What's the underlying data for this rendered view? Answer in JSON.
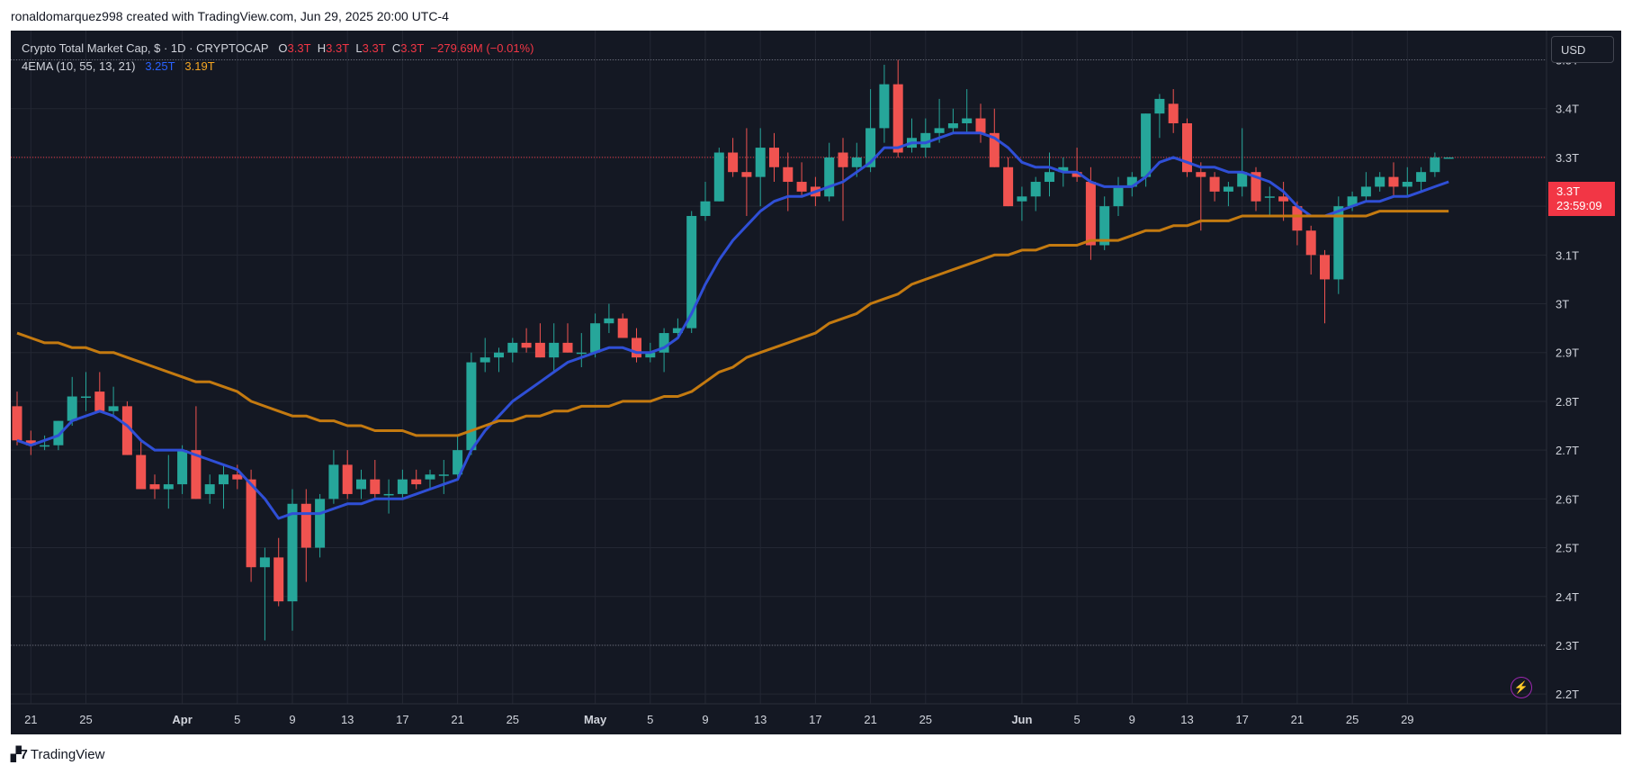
{
  "header": {
    "credit": "ronaldomarquez998 created with TradingView.com, Jun 29, 2025 20:00 UTC-4"
  },
  "legend": {
    "symbol": "Crypto Total Market Cap, $ · 1D · CRYPTOCAP",
    "o_label": "O",
    "o_value": "3.3T",
    "h_label": "H",
    "h_value": "3.3T",
    "l_label": "L",
    "l_value": "3.3T",
    "c_label": "C",
    "c_value": "3.3T",
    "change": "−279.69M (−0.01%)",
    "indicator": "4EMA (10, 55, 13, 21)",
    "ema_fast_value": "3.25T",
    "ema_slow_value": "3.19T"
  },
  "price_scale": {
    "currency": "USD",
    "last_price": "3.3T",
    "countdown": "23:59:09"
  },
  "footer": {
    "brand": "TradingView"
  },
  "colors": {
    "background": "#141823",
    "up": "#26a69a",
    "down": "#f05350",
    "ema_fast": "#2f4fd6",
    "ema_slow": "#c47a10",
    "grid": "#232733",
    "text": "#d1d4dc"
  },
  "chart_data": {
    "type": "candlestick",
    "title": "Crypto Total Market Cap, $ · 1D · CRYPTOCAP",
    "unit": "T",
    "ylim": [
      2.18,
      3.56
    ],
    "y_ticks": [
      2.2,
      2.3,
      2.4,
      2.5,
      2.6,
      2.7,
      2.8,
      2.9,
      3.0,
      3.1,
      3.2,
      3.3,
      3.4,
      3.5
    ],
    "y_tick_labels": [
      "2.2T",
      "2.3T",
      "2.4T",
      "2.5T",
      "2.6T",
      "2.7T",
      "2.8T",
      "2.9T",
      "3T",
      "3.1T",
      "3.2T",
      "3.3T",
      "3.4T",
      "3.5T"
    ],
    "x_tick_labels": [
      {
        "index": 1,
        "label": "21"
      },
      {
        "index": 5,
        "label": "25"
      },
      {
        "index": 12,
        "label": "Apr"
      },
      {
        "index": 16,
        "label": "5"
      },
      {
        "index": 20,
        "label": "9"
      },
      {
        "index": 24,
        "label": "13"
      },
      {
        "index": 28,
        "label": "17"
      },
      {
        "index": 32,
        "label": "21"
      },
      {
        "index": 36,
        "label": "25"
      },
      {
        "index": 42,
        "label": "May"
      },
      {
        "index": 46,
        "label": "5"
      },
      {
        "index": 50,
        "label": "9"
      },
      {
        "index": 54,
        "label": "13"
      },
      {
        "index": 58,
        "label": "17"
      },
      {
        "index": 62,
        "label": "21"
      },
      {
        "index": 66,
        "label": "25"
      },
      {
        "index": 73,
        "label": "Jun"
      },
      {
        "index": 77,
        "label": "5"
      },
      {
        "index": 81,
        "label": "9"
      },
      {
        "index": 85,
        "label": "13"
      },
      {
        "index": 89,
        "label": "17"
      },
      {
        "index": 93,
        "label": "21"
      },
      {
        "index": 97,
        "label": "25"
      },
      {
        "index": 101,
        "label": "29"
      }
    ],
    "candles": [
      {
        "o": 2.79,
        "h": 2.82,
        "l": 2.71,
        "c": 2.72
      },
      {
        "o": 2.72,
        "h": 2.74,
        "l": 2.69,
        "c": 2.71
      },
      {
        "o": 2.71,
        "h": 2.73,
        "l": 2.7,
        "c": 2.71
      },
      {
        "o": 2.71,
        "h": 2.76,
        "l": 2.7,
        "c": 2.76
      },
      {
        "o": 2.76,
        "h": 2.85,
        "l": 2.75,
        "c": 2.81
      },
      {
        "o": 2.81,
        "h": 2.86,
        "l": 2.78,
        "c": 2.81
      },
      {
        "o": 2.82,
        "h": 2.86,
        "l": 2.78,
        "c": 2.78
      },
      {
        "o": 2.78,
        "h": 2.83,
        "l": 2.77,
        "c": 2.79
      },
      {
        "o": 2.79,
        "h": 2.8,
        "l": 2.69,
        "c": 2.69
      },
      {
        "o": 2.69,
        "h": 2.72,
        "l": 2.62,
        "c": 2.62
      },
      {
        "o": 2.63,
        "h": 2.65,
        "l": 2.6,
        "c": 2.62
      },
      {
        "o": 2.62,
        "h": 2.69,
        "l": 2.58,
        "c": 2.63
      },
      {
        "o": 2.63,
        "h": 2.71,
        "l": 2.61,
        "c": 2.7
      },
      {
        "o": 2.7,
        "h": 2.79,
        "l": 2.6,
        "c": 2.6
      },
      {
        "o": 2.61,
        "h": 2.65,
        "l": 2.59,
        "c": 2.63
      },
      {
        "o": 2.63,
        "h": 2.67,
        "l": 2.58,
        "c": 2.65
      },
      {
        "o": 2.65,
        "h": 2.67,
        "l": 2.62,
        "c": 2.64
      },
      {
        "o": 2.64,
        "h": 2.66,
        "l": 2.43,
        "c": 2.46
      },
      {
        "o": 2.46,
        "h": 2.5,
        "l": 2.31,
        "c": 2.48
      },
      {
        "o": 2.48,
        "h": 2.52,
        "l": 2.38,
        "c": 2.39
      },
      {
        "o": 2.39,
        "h": 2.62,
        "l": 2.33,
        "c": 2.59
      },
      {
        "o": 2.59,
        "h": 2.62,
        "l": 2.43,
        "c": 2.5
      },
      {
        "o": 2.5,
        "h": 2.61,
        "l": 2.48,
        "c": 2.6
      },
      {
        "o": 2.6,
        "h": 2.7,
        "l": 2.59,
        "c": 2.67
      },
      {
        "o": 2.67,
        "h": 2.7,
        "l": 2.6,
        "c": 2.61
      },
      {
        "o": 2.62,
        "h": 2.66,
        "l": 2.6,
        "c": 2.64
      },
      {
        "o": 2.64,
        "h": 2.68,
        "l": 2.6,
        "c": 2.61
      },
      {
        "o": 2.61,
        "h": 2.64,
        "l": 2.57,
        "c": 2.61
      },
      {
        "o": 2.61,
        "h": 2.66,
        "l": 2.6,
        "c": 2.64
      },
      {
        "o": 2.64,
        "h": 2.66,
        "l": 2.62,
        "c": 2.63
      },
      {
        "o": 2.64,
        "h": 2.66,
        "l": 2.62,
        "c": 2.65
      },
      {
        "o": 2.65,
        "h": 2.68,
        "l": 2.61,
        "c": 2.65
      },
      {
        "o": 2.65,
        "h": 2.73,
        "l": 2.64,
        "c": 2.7
      },
      {
        "o": 2.7,
        "h": 2.9,
        "l": 2.69,
        "c": 2.88
      },
      {
        "o": 2.88,
        "h": 2.93,
        "l": 2.86,
        "c": 2.89
      },
      {
        "o": 2.89,
        "h": 2.91,
        "l": 2.86,
        "c": 2.9
      },
      {
        "o": 2.9,
        "h": 2.93,
        "l": 2.88,
        "c": 2.92
      },
      {
        "o": 2.92,
        "h": 2.95,
        "l": 2.9,
        "c": 2.91
      },
      {
        "o": 2.92,
        "h": 2.96,
        "l": 2.89,
        "c": 2.89
      },
      {
        "o": 2.89,
        "h": 2.96,
        "l": 2.86,
        "c": 2.92
      },
      {
        "o": 2.92,
        "h": 2.96,
        "l": 2.9,
        "c": 2.9
      },
      {
        "o": 2.9,
        "h": 2.94,
        "l": 2.87,
        "c": 2.9
      },
      {
        "o": 2.9,
        "h": 2.98,
        "l": 2.89,
        "c": 2.96
      },
      {
        "o": 2.96,
        "h": 3.0,
        "l": 2.94,
        "c": 2.97
      },
      {
        "o": 2.97,
        "h": 2.98,
        "l": 2.93,
        "c": 2.93
      },
      {
        "o": 2.93,
        "h": 2.95,
        "l": 2.88,
        "c": 2.89
      },
      {
        "o": 2.89,
        "h": 2.92,
        "l": 2.88,
        "c": 2.9
      },
      {
        "o": 2.9,
        "h": 2.95,
        "l": 2.86,
        "c": 2.94
      },
      {
        "o": 2.94,
        "h": 2.97,
        "l": 2.93,
        "c": 2.95
      },
      {
        "o": 2.95,
        "h": 3.19,
        "l": 2.94,
        "c": 3.18
      },
      {
        "o": 3.18,
        "h": 3.25,
        "l": 3.17,
        "c": 3.21
      },
      {
        "o": 3.21,
        "h": 3.32,
        "l": 3.21,
        "c": 3.31
      },
      {
        "o": 3.31,
        "h": 3.34,
        "l": 3.26,
        "c": 3.27
      },
      {
        "o": 3.27,
        "h": 3.36,
        "l": 3.18,
        "c": 3.26
      },
      {
        "o": 3.26,
        "h": 3.36,
        "l": 3.2,
        "c": 3.32
      },
      {
        "o": 3.32,
        "h": 3.35,
        "l": 3.25,
        "c": 3.28
      },
      {
        "o": 3.28,
        "h": 3.31,
        "l": 3.19,
        "c": 3.25
      },
      {
        "o": 3.25,
        "h": 3.29,
        "l": 3.22,
        "c": 3.23
      },
      {
        "o": 3.24,
        "h": 3.26,
        "l": 3.2,
        "c": 3.22
      },
      {
        "o": 3.22,
        "h": 3.33,
        "l": 3.21,
        "c": 3.3
      },
      {
        "o": 3.31,
        "h": 3.34,
        "l": 3.17,
        "c": 3.28
      },
      {
        "o": 3.28,
        "h": 3.33,
        "l": 3.26,
        "c": 3.3
      },
      {
        "o": 3.28,
        "h": 3.44,
        "l": 3.27,
        "c": 3.36
      },
      {
        "o": 3.36,
        "h": 3.49,
        "l": 3.33,
        "c": 3.45
      },
      {
        "o": 3.45,
        "h": 3.5,
        "l": 3.3,
        "c": 3.31
      },
      {
        "o": 3.32,
        "h": 3.38,
        "l": 3.31,
        "c": 3.34
      },
      {
        "o": 3.32,
        "h": 3.38,
        "l": 3.3,
        "c": 3.35
      },
      {
        "o": 3.35,
        "h": 3.42,
        "l": 3.33,
        "c": 3.36
      },
      {
        "o": 3.36,
        "h": 3.4,
        "l": 3.35,
        "c": 3.37
      },
      {
        "o": 3.37,
        "h": 3.44,
        "l": 3.35,
        "c": 3.38
      },
      {
        "o": 3.38,
        "h": 3.41,
        "l": 3.33,
        "c": 3.35
      },
      {
        "o": 3.35,
        "h": 3.4,
        "l": 3.28,
        "c": 3.28
      },
      {
        "o": 3.28,
        "h": 3.3,
        "l": 3.2,
        "c": 3.2
      },
      {
        "o": 3.21,
        "h": 3.24,
        "l": 3.17,
        "c": 3.22
      },
      {
        "o": 3.22,
        "h": 3.26,
        "l": 3.19,
        "c": 3.25
      },
      {
        "o": 3.25,
        "h": 3.31,
        "l": 3.22,
        "c": 3.27
      },
      {
        "o": 3.27,
        "h": 3.3,
        "l": 3.24,
        "c": 3.28
      },
      {
        "o": 3.27,
        "h": 3.32,
        "l": 3.25,
        "c": 3.26
      },
      {
        "o": 3.25,
        "h": 3.28,
        "l": 3.09,
        "c": 3.12
      },
      {
        "o": 3.12,
        "h": 3.22,
        "l": 3.11,
        "c": 3.2
      },
      {
        "o": 3.2,
        "h": 3.26,
        "l": 3.18,
        "c": 3.24
      },
      {
        "o": 3.24,
        "h": 3.27,
        "l": 3.22,
        "c": 3.26
      },
      {
        "o": 3.26,
        "h": 3.39,
        "l": 3.24,
        "c": 3.39
      },
      {
        "o": 3.39,
        "h": 3.43,
        "l": 3.34,
        "c": 3.42
      },
      {
        "o": 3.41,
        "h": 3.44,
        "l": 3.35,
        "c": 3.37
      },
      {
        "o": 3.37,
        "h": 3.38,
        "l": 3.26,
        "c": 3.27
      },
      {
        "o": 3.27,
        "h": 3.29,
        "l": 3.15,
        "c": 3.26
      },
      {
        "o": 3.26,
        "h": 3.27,
        "l": 3.21,
        "c": 3.23
      },
      {
        "o": 3.23,
        "h": 3.25,
        "l": 3.2,
        "c": 3.24
      },
      {
        "o": 3.24,
        "h": 3.36,
        "l": 3.22,
        "c": 3.27
      },
      {
        "o": 3.27,
        "h": 3.28,
        "l": 3.19,
        "c": 3.21
      },
      {
        "o": 3.22,
        "h": 3.24,
        "l": 3.18,
        "c": 3.22
      },
      {
        "o": 3.22,
        "h": 3.25,
        "l": 3.17,
        "c": 3.21
      },
      {
        "o": 3.2,
        "h": 3.21,
        "l": 3.12,
        "c": 3.15
      },
      {
        "o": 3.15,
        "h": 3.16,
        "l": 3.06,
        "c": 3.1
      },
      {
        "o": 3.1,
        "h": 3.11,
        "l": 2.96,
        "c": 3.05
      },
      {
        "o": 3.05,
        "h": 3.22,
        "l": 3.02,
        "c": 3.2
      },
      {
        "o": 3.2,
        "h": 3.23,
        "l": 3.19,
        "c": 3.22
      },
      {
        "o": 3.22,
        "h": 3.27,
        "l": 3.21,
        "c": 3.24
      },
      {
        "o": 3.24,
        "h": 3.27,
        "l": 3.23,
        "c": 3.26
      },
      {
        "o": 3.26,
        "h": 3.29,
        "l": 3.22,
        "c": 3.24
      },
      {
        "o": 3.24,
        "h": 3.28,
        "l": 3.22,
        "c": 3.25
      },
      {
        "o": 3.25,
        "h": 3.28,
        "l": 3.23,
        "c": 3.27
      },
      {
        "o": 3.27,
        "h": 3.31,
        "l": 3.26,
        "c": 3.3
      },
      {
        "o": 3.3,
        "h": 3.3,
        "l": 3.3,
        "c": 3.3
      }
    ],
    "series": [
      {
        "name": "EMA 10",
        "color": "#2f4fd6",
        "values": [
          2.72,
          2.71,
          2.72,
          2.73,
          2.76,
          2.77,
          2.78,
          2.77,
          2.75,
          2.72,
          2.7,
          2.7,
          2.7,
          2.69,
          2.68,
          2.67,
          2.66,
          2.63,
          2.6,
          2.56,
          2.57,
          2.57,
          2.57,
          2.58,
          2.59,
          2.59,
          2.6,
          2.6,
          2.6,
          2.61,
          2.62,
          2.63,
          2.64,
          2.7,
          2.74,
          2.77,
          2.8,
          2.82,
          2.84,
          2.86,
          2.88,
          2.89,
          2.9,
          2.91,
          2.91,
          2.9,
          2.9,
          2.91,
          2.93,
          2.98,
          3.04,
          3.09,
          3.13,
          3.16,
          3.19,
          3.21,
          3.22,
          3.22,
          3.23,
          3.24,
          3.25,
          3.27,
          3.29,
          3.32,
          3.32,
          3.33,
          3.33,
          3.34,
          3.35,
          3.35,
          3.35,
          3.34,
          3.32,
          3.29,
          3.28,
          3.28,
          3.27,
          3.27,
          3.25,
          3.24,
          3.24,
          3.24,
          3.26,
          3.29,
          3.3,
          3.29,
          3.28,
          3.28,
          3.27,
          3.27,
          3.26,
          3.25,
          3.23,
          3.2,
          3.18,
          3.18,
          3.19,
          3.2,
          3.21,
          3.21,
          3.22,
          3.22,
          3.23,
          3.24,
          3.25
        ]
      },
      {
        "name": "EMA 55",
        "color": "#c47a10",
        "values": [
          2.94,
          2.93,
          2.92,
          2.92,
          2.91,
          2.91,
          2.9,
          2.9,
          2.89,
          2.88,
          2.87,
          2.86,
          2.85,
          2.84,
          2.84,
          2.83,
          2.82,
          2.8,
          2.79,
          2.78,
          2.77,
          2.77,
          2.76,
          2.76,
          2.75,
          2.75,
          2.74,
          2.74,
          2.74,
          2.73,
          2.73,
          2.73,
          2.73,
          2.74,
          2.75,
          2.76,
          2.76,
          2.77,
          2.77,
          2.78,
          2.78,
          2.79,
          2.79,
          2.79,
          2.8,
          2.8,
          2.8,
          2.81,
          2.81,
          2.82,
          2.84,
          2.86,
          2.87,
          2.89,
          2.9,
          2.91,
          2.92,
          2.93,
          2.94,
          2.96,
          2.97,
          2.98,
          3.0,
          3.01,
          3.02,
          3.04,
          3.05,
          3.06,
          3.07,
          3.08,
          3.09,
          3.1,
          3.1,
          3.11,
          3.11,
          3.12,
          3.12,
          3.12,
          3.13,
          3.13,
          3.13,
          3.14,
          3.15,
          3.15,
          3.16,
          3.16,
          3.17,
          3.17,
          3.17,
          3.18,
          3.18,
          3.18,
          3.18,
          3.18,
          3.18,
          3.18,
          3.18,
          3.18,
          3.18,
          3.19,
          3.19,
          3.19,
          3.19,
          3.19,
          3.19
        ]
      }
    ],
    "reference_lines": [
      {
        "value": 3.5,
        "style": "dotted",
        "color": "#6a6d78"
      },
      {
        "value": 3.3,
        "style": "dotted",
        "color": "#f23645"
      },
      {
        "value": 2.3,
        "style": "dotted",
        "color": "#6a6d78"
      }
    ]
  }
}
